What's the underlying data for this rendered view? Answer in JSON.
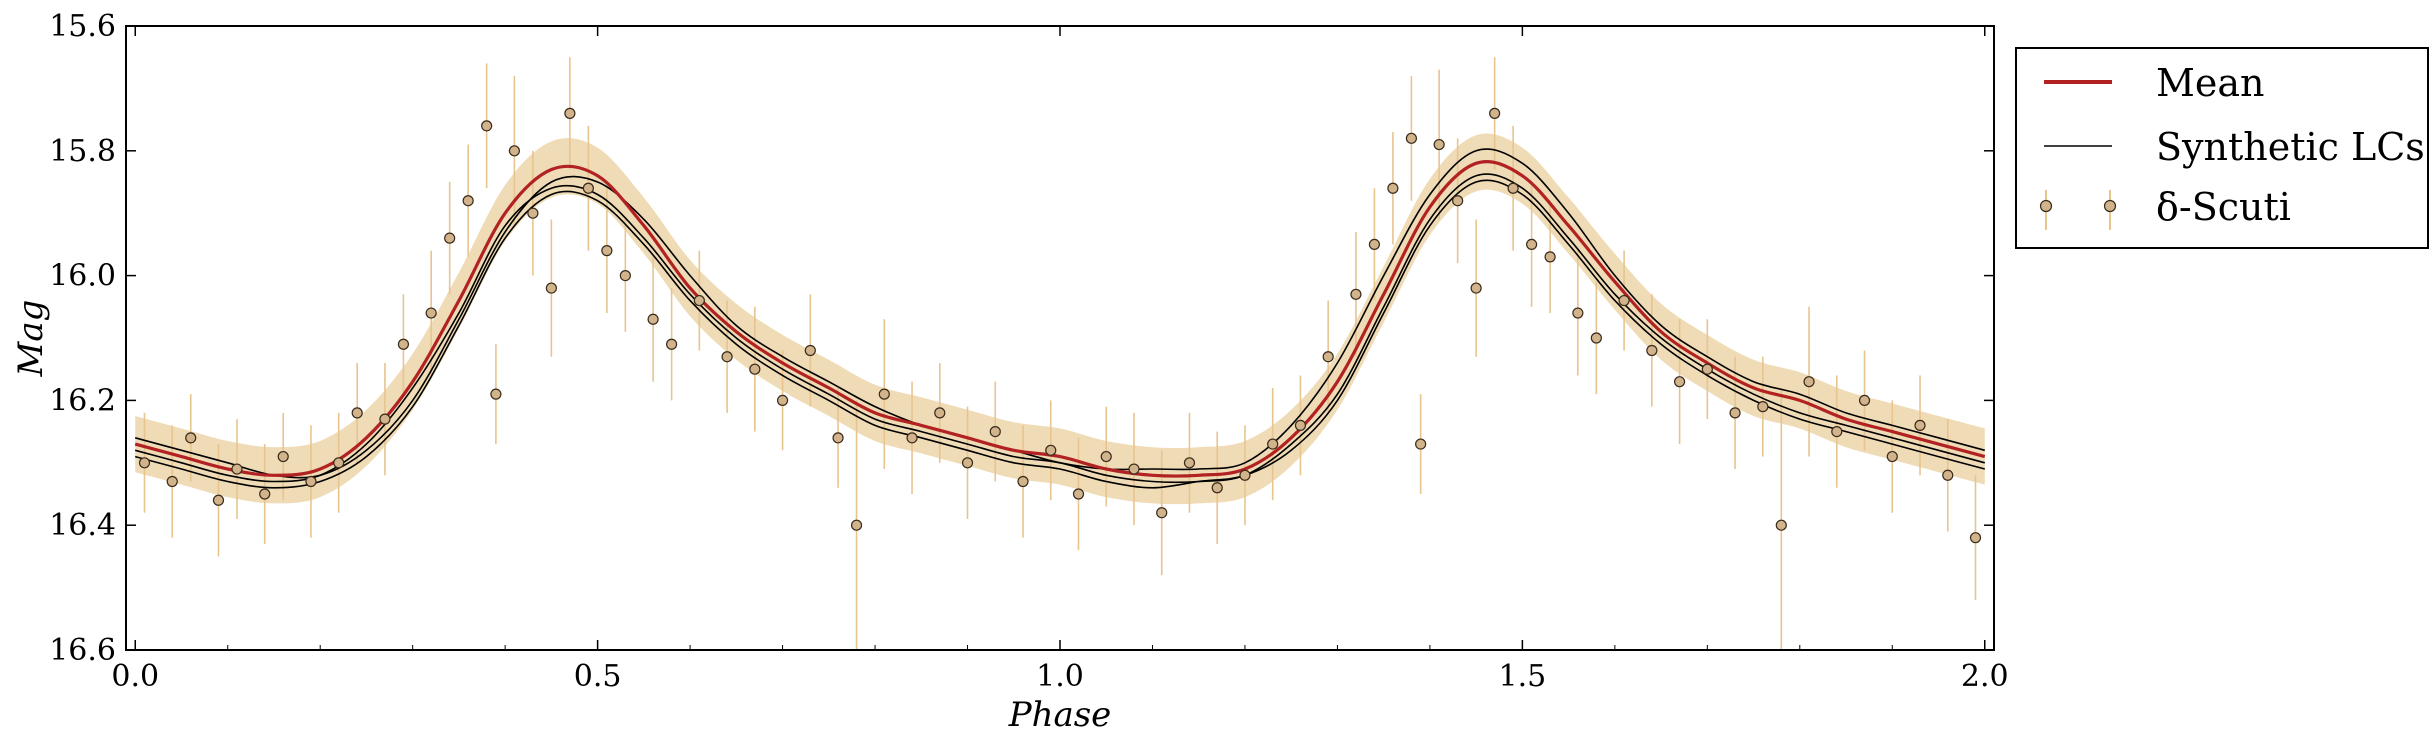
{
  "chart_data": {
    "type": "scatter",
    "xlabel": "Phase",
    "ylabel": "Mag",
    "xlim": [
      -0.01,
      2.01
    ],
    "ylim": [
      16.6,
      15.6
    ],
    "y_inverted": true,
    "grid": false,
    "legend_position": "outside-right-top",
    "x_ticks": [
      "0.0",
      "0.5",
      "1.0",
      "1.5",
      "2.0"
    ],
    "y_ticks": [
      "15.6",
      "15.8",
      "16.0",
      "16.2",
      "16.4",
      "16.6"
    ],
    "legend": [
      {
        "label": "Mean",
        "color": "#b22222",
        "style": "thick-line"
      },
      {
        "label": "Synthetic LCs",
        "color": "#000000",
        "style": "thin-line"
      },
      {
        "label": "δ-Scuti",
        "color": "#d2b48c",
        "style": "circle-errorbar"
      }
    ],
    "colors": {
      "mean": "#b22222",
      "synthetic": "#000000",
      "band": "#e9cf9c",
      "points": "#d2b48c",
      "errorbars": "#e8c48f"
    },
    "band_halfwidth_mag": 0.045,
    "series": [
      {
        "name": "Mean",
        "kind": "line",
        "x": [
          0.0,
          0.05,
          0.1,
          0.15,
          0.2,
          0.25,
          0.3,
          0.35,
          0.4,
          0.45,
          0.5,
          0.55,
          0.6,
          0.65,
          0.7,
          0.75,
          0.8,
          0.85,
          0.9,
          0.95,
          1.0,
          1.05,
          1.1,
          1.15,
          1.2,
          1.25,
          1.3,
          1.35,
          1.4,
          1.45,
          1.5,
          1.55,
          1.6,
          1.65,
          1.7,
          1.75,
          1.8,
          1.85,
          1.9,
          1.95,
          2.0
        ],
        "y": [
          16.27,
          16.29,
          16.31,
          16.32,
          16.31,
          16.26,
          16.17,
          16.04,
          15.9,
          15.83,
          15.84,
          15.92,
          16.02,
          16.09,
          16.14,
          16.18,
          16.22,
          16.24,
          16.26,
          16.28,
          16.29,
          16.31,
          16.32,
          16.32,
          16.31,
          16.26,
          16.17,
          16.03,
          15.89,
          15.82,
          15.84,
          15.92,
          16.01,
          16.09,
          16.14,
          16.18,
          16.2,
          16.23,
          16.25,
          16.27,
          16.29
        ]
      },
      {
        "name": "Synthetic LCs",
        "kind": "line",
        "x": [
          0.0,
          0.05,
          0.1,
          0.15,
          0.2,
          0.25,
          0.3,
          0.35,
          0.4,
          0.45,
          0.5,
          0.55,
          0.6,
          0.65,
          0.7,
          0.75,
          0.8,
          0.85,
          0.9,
          0.95,
          1.0,
          1.05,
          1.1,
          1.15,
          1.2,
          1.25,
          1.3,
          1.35,
          1.4,
          1.45,
          1.5,
          1.55,
          1.6,
          1.65,
          1.7,
          1.75,
          1.8,
          1.85,
          1.9,
          1.95,
          2.0
        ],
        "y": [
          16.28,
          16.3,
          16.32,
          16.33,
          16.32,
          16.27,
          16.18,
          16.06,
          15.92,
          15.86,
          15.87,
          15.94,
          16.03,
          16.1,
          16.15,
          16.19,
          16.23,
          16.25,
          16.27,
          16.29,
          16.3,
          16.32,
          16.33,
          16.33,
          16.32,
          16.27,
          16.19,
          16.05,
          15.91,
          15.84,
          15.86,
          15.94,
          16.03,
          16.1,
          16.15,
          16.19,
          16.22,
          16.24,
          16.26,
          16.28,
          16.3
        ]
      },
      {
        "name": "Synthetic LCs",
        "kind": "line",
        "x": [
          0.0,
          0.05,
          0.1,
          0.15,
          0.2,
          0.25,
          0.3,
          0.35,
          0.4,
          0.45,
          0.5,
          0.55,
          0.6,
          0.65,
          0.7,
          0.75,
          0.8,
          0.85,
          0.9,
          0.95,
          1.0,
          1.05,
          1.1,
          1.15,
          1.2,
          1.25,
          1.3,
          1.35,
          1.4,
          1.45,
          1.5,
          1.55,
          1.6,
          1.65,
          1.7,
          1.75,
          1.8,
          1.85,
          1.9,
          1.95,
          2.0
        ],
        "y": [
          16.26,
          16.28,
          16.3,
          16.32,
          16.32,
          16.28,
          16.2,
          16.07,
          15.93,
          15.85,
          15.85,
          15.91,
          16.0,
          16.08,
          16.13,
          16.17,
          16.21,
          16.24,
          16.26,
          16.28,
          16.3,
          16.31,
          16.31,
          16.31,
          16.3,
          16.24,
          16.14,
          16.0,
          15.87,
          15.8,
          15.82,
          15.9,
          16.0,
          16.08,
          16.13,
          16.17,
          16.19,
          16.22,
          16.24,
          16.26,
          16.28
        ]
      },
      {
        "name": "Synthetic LCs",
        "kind": "line",
        "x": [
          0.0,
          0.05,
          0.1,
          0.15,
          0.2,
          0.25,
          0.3,
          0.35,
          0.4,
          0.45,
          0.5,
          0.55,
          0.6,
          0.65,
          0.7,
          0.75,
          0.8,
          0.85,
          0.9,
          0.95,
          1.0,
          1.05,
          1.1,
          1.15,
          1.2,
          1.25,
          1.3,
          1.35,
          1.4,
          1.45,
          1.5,
          1.55,
          1.6,
          1.65,
          1.7,
          1.75,
          1.8,
          1.85,
          1.9,
          1.95,
          2.0
        ],
        "y": [
          16.29,
          16.31,
          16.33,
          16.34,
          16.33,
          16.29,
          16.21,
          16.08,
          15.94,
          15.87,
          15.88,
          15.95,
          16.04,
          16.11,
          16.16,
          16.2,
          16.24,
          16.26,
          16.28,
          16.3,
          16.31,
          16.33,
          16.34,
          16.33,
          16.32,
          16.28,
          16.2,
          16.06,
          15.92,
          15.85,
          15.87,
          15.95,
          16.04,
          16.11,
          16.16,
          16.2,
          16.23,
          16.25,
          16.27,
          16.29,
          16.31
        ]
      },
      {
        "name": "δ-Scuti",
        "kind": "scatter-errorbar",
        "x": [
          0.01,
          0.04,
          0.06,
          0.09,
          0.11,
          0.14,
          0.16,
          0.19,
          0.22,
          0.24,
          0.27,
          0.29,
          0.32,
          0.34,
          0.36,
          0.38,
          0.39,
          0.41,
          0.43,
          0.45,
          0.47,
          0.49,
          0.51,
          0.53,
          0.56,
          0.58,
          0.61,
          0.64,
          0.67,
          0.7,
          0.73,
          0.76,
          0.78,
          0.81,
          0.84,
          0.87,
          0.9,
          0.93,
          0.96,
          0.99,
          1.02,
          1.05,
          1.08,
          1.11,
          1.14,
          1.17,
          1.2,
          1.23,
          1.26,
          1.29,
          1.32,
          1.34,
          1.36,
          1.38,
          1.39,
          1.41,
          1.43,
          1.45,
          1.47,
          1.49,
          1.51,
          1.53,
          1.56,
          1.58,
          1.61,
          1.64,
          1.67,
          1.7,
          1.73,
          1.76,
          1.78,
          1.81,
          1.84,
          1.87,
          1.9,
          1.93,
          1.96,
          1.99
        ],
        "y": [
          16.3,
          16.33,
          16.26,
          16.36,
          16.31,
          16.35,
          16.29,
          16.33,
          16.3,
          16.22,
          16.23,
          16.11,
          16.06,
          15.94,
          15.88,
          15.76,
          16.19,
          15.8,
          15.9,
          16.02,
          15.74,
          15.86,
          15.96,
          16.0,
          16.07,
          16.11,
          16.04,
          16.13,
          16.15,
          16.2,
          16.12,
          16.26,
          16.4,
          16.19,
          16.26,
          16.22,
          16.3,
          16.25,
          16.33,
          16.28,
          16.35,
          16.29,
          16.31,
          16.38,
          16.3,
          16.34,
          16.32,
          16.27,
          16.24,
          16.13,
          16.03,
          15.95,
          15.86,
          15.78,
          16.27,
          15.79,
          15.88,
          16.02,
          15.74,
          15.86,
          15.95,
          15.97,
          16.06,
          16.1,
          16.04,
          16.12,
          16.17,
          16.15,
          16.22,
          16.21,
          16.4,
          16.17,
          16.25,
          16.2,
          16.29,
          16.24,
          16.32,
          16.42
        ],
        "yerr": [
          0.08,
          0.09,
          0.07,
          0.09,
          0.08,
          0.08,
          0.07,
          0.09,
          0.08,
          0.08,
          0.09,
          0.08,
          0.1,
          0.09,
          0.09,
          0.1,
          0.08,
          0.12,
          0.1,
          0.11,
          0.09,
          0.1,
          0.1,
          0.09,
          0.1,
          0.09,
          0.08,
          0.09,
          0.1,
          0.08,
          0.09,
          0.08,
          0.2,
          0.12,
          0.09,
          0.08,
          0.09,
          0.08,
          0.09,
          0.08,
          0.09,
          0.08,
          0.09,
          0.1,
          0.08,
          0.09,
          0.08,
          0.09,
          0.08,
          0.09,
          0.1,
          0.09,
          0.09,
          0.1,
          0.08,
          0.12,
          0.1,
          0.11,
          0.09,
          0.1,
          0.1,
          0.09,
          0.1,
          0.09,
          0.08,
          0.09,
          0.1,
          0.08,
          0.09,
          0.08,
          0.22,
          0.12,
          0.09,
          0.08,
          0.09,
          0.08,
          0.09,
          0.1
        ]
      }
    ]
  }
}
